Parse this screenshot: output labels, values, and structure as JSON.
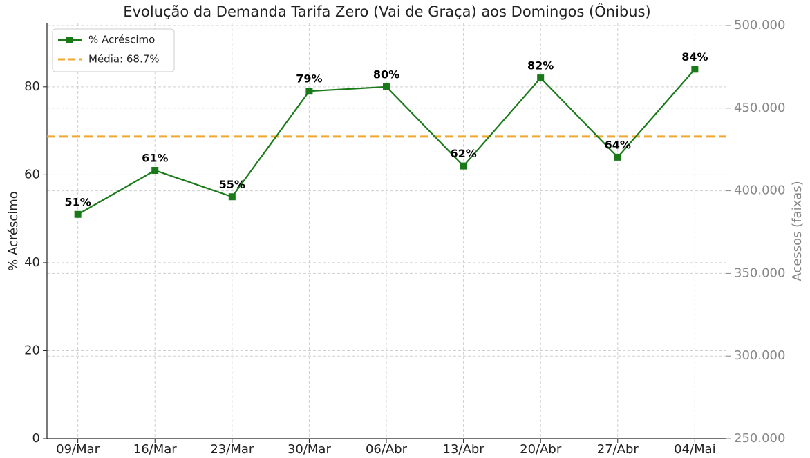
{
  "chart_data": {
    "type": "line",
    "title": "Evolução da Demanda Tarifa Zero (Vai de Graça) aos Domingos (Ônibus)",
    "ylabel": "% Acréscimo",
    "y2label": "Acessos (faixas)",
    "categories": [
      "09/Mar",
      "16/Mar",
      "23/Mar",
      "30/Mar",
      "06/Abr",
      "13/Abr",
      "20/Abr",
      "27/Abr",
      "04/Mai"
    ],
    "series": [
      {
        "name": "% Acréscimo",
        "color": "#1a7a1a",
        "values": [
          51,
          61,
          55,
          79,
          80,
          62,
          82,
          64,
          84
        ],
        "value_labels": [
          "51%",
          "61%",
          "55%",
          "79%",
          "80%",
          "62%",
          "82%",
          "64%",
          "84%"
        ]
      }
    ],
    "reference_lines": [
      {
        "name": "Média: 68.7%",
        "value": 68.7,
        "color": "#f0a830"
      }
    ],
    "ylim": [
      0,
      94.4
    ],
    "yticks": [
      0,
      20,
      40,
      60,
      80
    ],
    "y2lim": [
      250000,
      501250
    ],
    "y2ticks": [
      {
        "value": 250000,
        "label": "250.000"
      },
      {
        "value": 300000,
        "label": "300.000"
      },
      {
        "value": 350000,
        "label": "350.000"
      },
      {
        "value": 400000,
        "label": "400.000"
      },
      {
        "value": 450000,
        "label": "450.000"
      },
      {
        "value": 500000,
        "label": "500.000"
      }
    ],
    "grid": true,
    "legend": "upper left"
  }
}
